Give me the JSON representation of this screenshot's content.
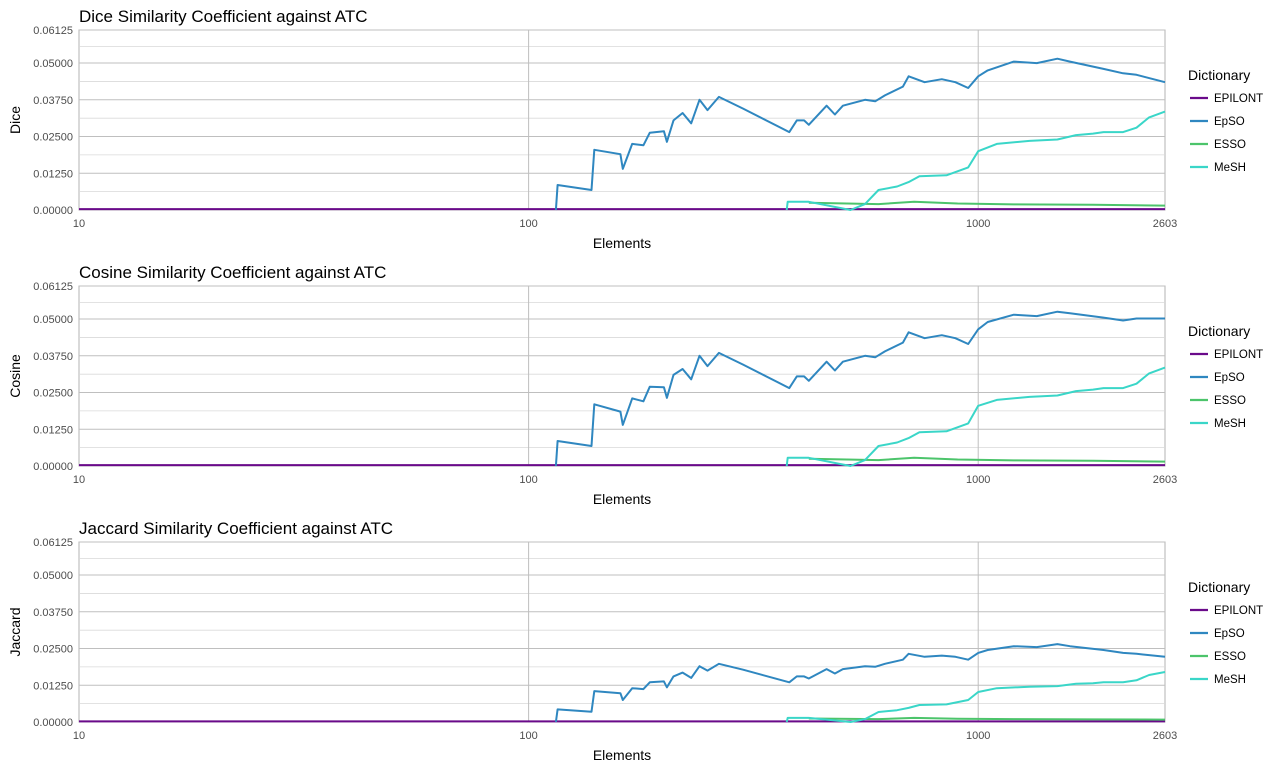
{
  "legend": {
    "title": "Dictionary",
    "items": [
      {
        "name": "EPILONT",
        "color": "#6a0a8a"
      },
      {
        "name": "EpSO",
        "color": "#2f87c0"
      },
      {
        "name": "ESSO",
        "color": "#4cc46b"
      },
      {
        "name": "MeSH",
        "color": "#3ad6c8"
      }
    ]
  },
  "x_axis": {
    "label": "Elements",
    "ticks": [
      "10",
      "100",
      "1000",
      "2603"
    ],
    "tick_values": [
      10,
      100,
      1000,
      2603
    ],
    "scale": "log10",
    "range": [
      10,
      2603
    ]
  },
  "y_axis": {
    "ticks": [
      "0.00000",
      "0.01250",
      "0.02500",
      "0.03750",
      "0.05000",
      "0.06125"
    ],
    "tick_values": [
      0,
      0.0125,
      0.025,
      0.0375,
      0.05,
      0.06125
    ],
    "range": [
      0,
      0.06125
    ]
  },
  "chart_data": [
    {
      "type": "line",
      "title": "Dice Similarity Coefficient against ATC",
      "xlabel": "Elements",
      "ylabel": "Dice",
      "x_scale": "log10",
      "xlim": [
        10,
        2603
      ],
      "ylim": [
        0,
        0.06125
      ],
      "grid": true,
      "legend_position": "right",
      "series": [
        {
          "name": "EPILONT",
          "color": "#6a0a8a",
          "points": [
            [
              10,
              0.0003
            ],
            [
              2603,
              0.0003
            ]
          ]
        },
        {
          "name": "EpSO",
          "color": "#2f87c0",
          "points": [
            [
              115,
              0
            ],
            [
              116,
              0.0085
            ],
            [
              138,
              0.0068
            ],
            [
              140,
              0.0205
            ],
            [
              160,
              0.019
            ],
            [
              162,
              0.014
            ],
            [
              170,
              0.0225
            ],
            [
              180,
              0.022
            ],
            [
              186,
              0.0263
            ],
            [
              200,
              0.0268
            ],
            [
              203,
              0.0232
            ],
            [
              210,
              0.0305
            ],
            [
              220,
              0.033
            ],
            [
              230,
              0.0295
            ],
            [
              240,
              0.0375
            ],
            [
              250,
              0.034
            ],
            [
              265,
              0.0385
            ],
            [
              300,
              0.0345
            ],
            [
              380,
              0.0265
            ],
            [
              395,
              0.0305
            ],
            [
              410,
              0.0305
            ],
            [
              420,
              0.029
            ],
            [
              460,
              0.0355
            ],
            [
              480,
              0.0325
            ],
            [
              500,
              0.0355
            ],
            [
              560,
              0.0375
            ],
            [
              590,
              0.037
            ],
            [
              620,
              0.039
            ],
            [
              680,
              0.042
            ],
            [
              700,
              0.0455
            ],
            [
              760,
              0.0435
            ],
            [
              830,
              0.0445
            ],
            [
              890,
              0.0435
            ],
            [
              950,
              0.0415
            ],
            [
              1000,
              0.0455
            ],
            [
              1050,
              0.0475
            ],
            [
              1200,
              0.0505
            ],
            [
              1350,
              0.05
            ],
            [
              1500,
              0.0515
            ],
            [
              1600,
              0.0505
            ],
            [
              1900,
              0.048
            ],
            [
              2100,
              0.0465
            ],
            [
              2250,
              0.046
            ],
            [
              2603,
              0.0435
            ]
          ]
        },
        {
          "name": "ESSO",
          "color": "#4cc46b",
          "points": [
            [
              420,
              0.0025
            ],
            [
              600,
              0.002
            ],
            [
              720,
              0.0028
            ],
            [
              900,
              0.0022
            ],
            [
              1200,
              0.0019
            ],
            [
              1800,
              0.0018
            ],
            [
              2603,
              0.0015
            ]
          ]
        },
        {
          "name": "MeSH",
          "color": "#3ad6c8",
          "points": [
            [
              375,
              0
            ],
            [
              377,
              0.0028
            ],
            [
              420,
              0.0028
            ],
            [
              520,
              0
            ],
            [
              560,
              0.002
            ],
            [
              600,
              0.0068
            ],
            [
              660,
              0.008
            ],
            [
              700,
              0.0095
            ],
            [
              740,
              0.0115
            ],
            [
              850,
              0.0118
            ],
            [
              950,
              0.0145
            ],
            [
              1000,
              0.02
            ],
            [
              1100,
              0.0225
            ],
            [
              1300,
              0.0235
            ],
            [
              1500,
              0.024
            ],
            [
              1650,
              0.0255
            ],
            [
              1800,
              0.026
            ],
            [
              1900,
              0.0265
            ],
            [
              2100,
              0.0265
            ],
            [
              2250,
              0.028
            ],
            [
              2400,
              0.0315
            ],
            [
              2603,
              0.0335
            ]
          ]
        }
      ]
    },
    {
      "type": "line",
      "title": "Cosine Similarity Coefficient against ATC",
      "xlabel": "Elements",
      "ylabel": "Cosine",
      "x_scale": "log10",
      "xlim": [
        10,
        2603
      ],
      "ylim": [
        0,
        0.06125
      ],
      "grid": true,
      "legend_position": "right",
      "series": [
        {
          "name": "EPILONT",
          "color": "#6a0a8a",
          "points": [
            [
              10,
              0.0003
            ],
            [
              2603,
              0.0003
            ]
          ]
        },
        {
          "name": "EpSO",
          "color": "#2f87c0",
          "points": [
            [
              115,
              0
            ],
            [
              116,
              0.0085
            ],
            [
              138,
              0.0068
            ],
            [
              140,
              0.021
            ],
            [
              160,
              0.0185
            ],
            [
              162,
              0.014
            ],
            [
              170,
              0.023
            ],
            [
              180,
              0.022
            ],
            [
              186,
              0.027
            ],
            [
              200,
              0.0268
            ],
            [
              203,
              0.0232
            ],
            [
              210,
              0.031
            ],
            [
              220,
              0.033
            ],
            [
              230,
              0.0295
            ],
            [
              240,
              0.0375
            ],
            [
              250,
              0.034
            ],
            [
              265,
              0.0385
            ],
            [
              300,
              0.0345
            ],
            [
              380,
              0.0265
            ],
            [
              395,
              0.0305
            ],
            [
              410,
              0.0305
            ],
            [
              420,
              0.029
            ],
            [
              460,
              0.0355
            ],
            [
              480,
              0.0325
            ],
            [
              500,
              0.0355
            ],
            [
              560,
              0.0375
            ],
            [
              590,
              0.037
            ],
            [
              620,
              0.039
            ],
            [
              680,
              0.042
            ],
            [
              700,
              0.0455
            ],
            [
              760,
              0.0435
            ],
            [
              830,
              0.0445
            ],
            [
              890,
              0.0435
            ],
            [
              950,
              0.0415
            ],
            [
              1000,
              0.0465
            ],
            [
              1050,
              0.049
            ],
            [
              1200,
              0.0515
            ],
            [
              1350,
              0.051
            ],
            [
              1500,
              0.0525
            ],
            [
              1600,
              0.052
            ],
            [
              1900,
              0.0505
            ],
            [
              2100,
              0.0495
            ],
            [
              2250,
              0.0502
            ],
            [
              2603,
              0.0502
            ]
          ]
        },
        {
          "name": "ESSO",
          "color": "#4cc46b",
          "points": [
            [
              420,
              0.0025
            ],
            [
              600,
              0.002
            ],
            [
              720,
              0.0028
            ],
            [
              900,
              0.0022
            ],
            [
              1200,
              0.0019
            ],
            [
              1800,
              0.0018
            ],
            [
              2603,
              0.0015
            ]
          ]
        },
        {
          "name": "MeSH",
          "color": "#3ad6c8",
          "points": [
            [
              375,
              0
            ],
            [
              377,
              0.0028
            ],
            [
              420,
              0.0028
            ],
            [
              520,
              0
            ],
            [
              560,
              0.002
            ],
            [
              600,
              0.0068
            ],
            [
              660,
              0.008
            ],
            [
              700,
              0.0095
            ],
            [
              740,
              0.0115
            ],
            [
              850,
              0.0118
            ],
            [
              950,
              0.0145
            ],
            [
              1000,
              0.0205
            ],
            [
              1100,
              0.0225
            ],
            [
              1300,
              0.0235
            ],
            [
              1500,
              0.024
            ],
            [
              1650,
              0.0255
            ],
            [
              1800,
              0.026
            ],
            [
              1900,
              0.0265
            ],
            [
              2100,
              0.0265
            ],
            [
              2250,
              0.028
            ],
            [
              2400,
              0.0315
            ],
            [
              2603,
              0.0335
            ]
          ]
        }
      ]
    },
    {
      "type": "line",
      "title": "Jaccard Similarity Coefficient against ATC",
      "xlabel": "Elements",
      "ylabel": "Jaccard",
      "x_scale": "log10",
      "xlim": [
        10,
        2603
      ],
      "ylim": [
        0,
        0.06125
      ],
      "grid": true,
      "legend_position": "right",
      "series": [
        {
          "name": "EPILONT",
          "color": "#6a0a8a",
          "points": [
            [
              10,
              0.0002
            ],
            [
              2603,
              0.0002
            ]
          ]
        },
        {
          "name": "EpSO",
          "color": "#2f87c0",
          "points": [
            [
              115,
              0
            ],
            [
              116,
              0.0043
            ],
            [
              138,
              0.0035
            ],
            [
              140,
              0.0105
            ],
            [
              160,
              0.0098
            ],
            [
              162,
              0.0075
            ],
            [
              170,
              0.0115
            ],
            [
              180,
              0.0112
            ],
            [
              186,
              0.0135
            ],
            [
              200,
              0.0138
            ],
            [
              203,
              0.0118
            ],
            [
              210,
              0.0155
            ],
            [
              220,
              0.0168
            ],
            [
              230,
              0.015
            ],
            [
              240,
              0.019
            ],
            [
              250,
              0.0175
            ],
            [
              265,
              0.0198
            ],
            [
              300,
              0.0178
            ],
            [
              380,
              0.0135
            ],
            [
              395,
              0.0155
            ],
            [
              410,
              0.0155
            ],
            [
              420,
              0.0148
            ],
            [
              460,
              0.018
            ],
            [
              480,
              0.0165
            ],
            [
              500,
              0.018
            ],
            [
              560,
              0.019
            ],
            [
              590,
              0.0188
            ],
            [
              620,
              0.0198
            ],
            [
              680,
              0.0212
            ],
            [
              700,
              0.0232
            ],
            [
              760,
              0.0222
            ],
            [
              830,
              0.0226
            ],
            [
              890,
              0.0222
            ],
            [
              950,
              0.0212
            ],
            [
              1000,
              0.0235
            ],
            [
              1050,
              0.0245
            ],
            [
              1200,
              0.0258
            ],
            [
              1350,
              0.0255
            ],
            [
              1500,
              0.0265
            ],
            [
              1600,
              0.0258
            ],
            [
              1900,
              0.0245
            ],
            [
              2100,
              0.0235
            ],
            [
              2250,
              0.0232
            ],
            [
              2603,
              0.0222
            ]
          ]
        },
        {
          "name": "ESSO",
          "color": "#4cc46b",
          "points": [
            [
              420,
              0.0012
            ],
            [
              600,
              0.001
            ],
            [
              720,
              0.0014
            ],
            [
              900,
              0.0011
            ],
            [
              1200,
              0.001
            ],
            [
              1800,
              0.0009
            ],
            [
              2603,
              0.0008
            ]
          ]
        },
        {
          "name": "MeSH",
          "color": "#3ad6c8",
          "points": [
            [
              375,
              0
            ],
            [
              377,
              0.0014
            ],
            [
              420,
              0.0014
            ],
            [
              520,
              0
            ],
            [
              560,
              0.001
            ],
            [
              600,
              0.0034
            ],
            [
              660,
              0.004
            ],
            [
              700,
              0.0048
            ],
            [
              740,
              0.0058
            ],
            [
              850,
              0.006
            ],
            [
              950,
              0.0075
            ],
            [
              1000,
              0.0102
            ],
            [
              1100,
              0.0115
            ],
            [
              1300,
              0.012
            ],
            [
              1500,
              0.0122
            ],
            [
              1650,
              0.013
            ],
            [
              1800,
              0.0132
            ],
            [
              1900,
              0.0135
            ],
            [
              2100,
              0.0135
            ],
            [
              2250,
              0.0142
            ],
            [
              2400,
              0.016
            ],
            [
              2603,
              0.017
            ]
          ]
        }
      ]
    }
  ]
}
